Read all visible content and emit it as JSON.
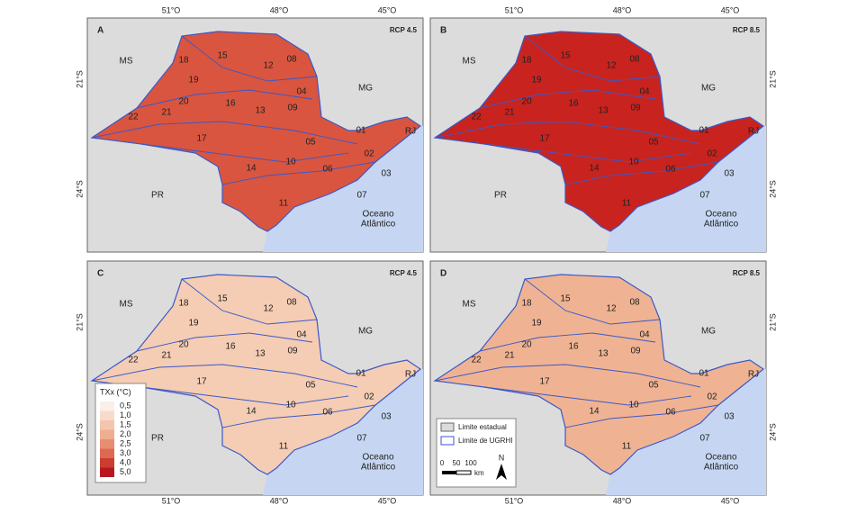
{
  "panels": [
    {
      "letter": "A",
      "scenario": "RCP 4.5"
    },
    {
      "letter": "B",
      "scenario": "RCP 8.5"
    },
    {
      "letter": "C",
      "scenario": "RCP 4.5"
    },
    {
      "letter": "D",
      "scenario": "RCP 8.5"
    }
  ],
  "lon_labels": [
    "51°O",
    "48°O",
    "45°O"
  ],
  "lat_labels": [
    "21°S",
    "24°S"
  ],
  "regions": [
    "MS",
    "MG",
    "PR",
    "RJ"
  ],
  "ocean": [
    "Oceano",
    "Atlântico"
  ],
  "ugrhi": [
    "01",
    "02",
    "03",
    "04",
    "05",
    "06",
    "07",
    "08",
    "09",
    "10",
    "11",
    "12",
    "13",
    "14",
    "15",
    "16",
    "17",
    "18",
    "19",
    "20",
    "21",
    "22"
  ],
  "color_legend": {
    "title": "TXx (°C)",
    "labels": [
      "0,5",
      "1,0",
      "1,5",
      "2,0",
      "2,5",
      "3,0",
      "4,0",
      "5,0"
    ]
  },
  "map_legend": {
    "state": "Limite estadual",
    "ugrhi": "Limite de UGRHI"
  },
  "scale": {
    "ticks": [
      "0",
      "50",
      "100"
    ],
    "unit": "km"
  },
  "north": "N"
}
